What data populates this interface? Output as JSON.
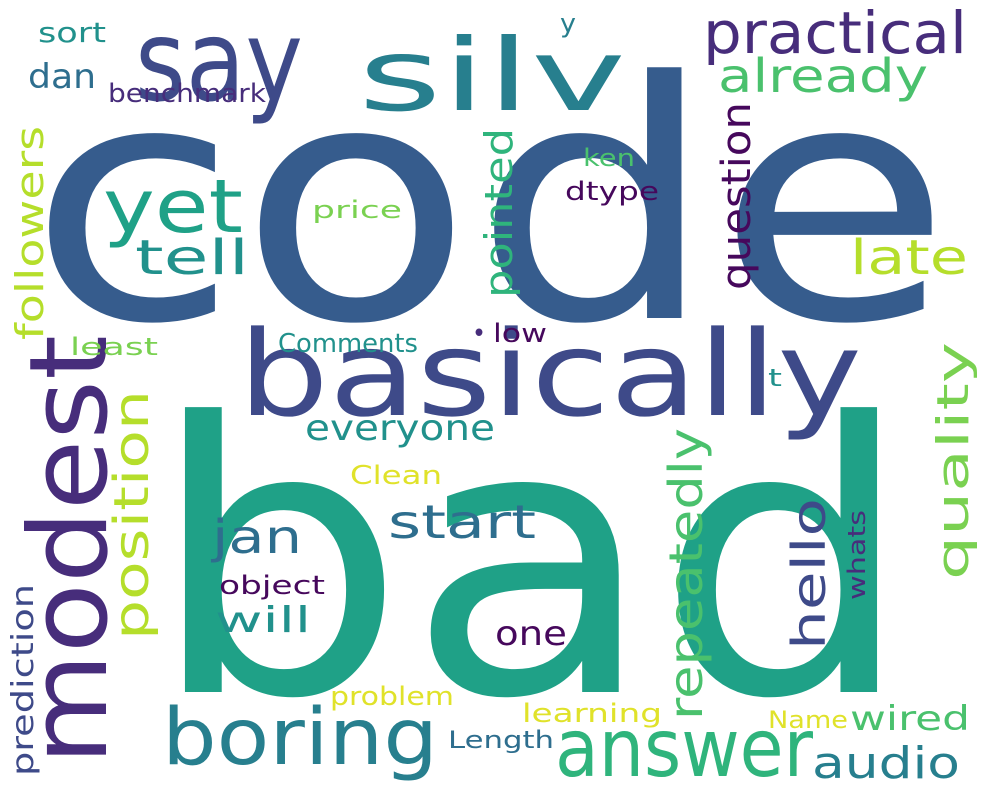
{
  "palette": {
    "deep_purple": "#46085c",
    "purple": "#472d7b",
    "indigo": "#3e4a89",
    "blue": "#365c8d",
    "steel_blue": "#2e6e8e",
    "teal_blue": "#277f8e",
    "teal": "#21918c",
    "sea_green": "#1fa187",
    "green": "#2fb47c",
    "light_green": "#4ac16d",
    "lime": "#7ad151",
    "yellow_green": "#b5de2b",
    "yellow": "#e0e22a"
  },
  "words": [
    {
      "id": "code",
      "text": "code",
      "color": "blue"
    },
    {
      "id": "bad",
      "text": "bad",
      "color": "sea_green"
    },
    {
      "id": "basically",
      "text": "basically",
      "color": "indigo"
    },
    {
      "id": "modest",
      "text": "modest",
      "color": "purple"
    },
    {
      "id": "say",
      "text": "say",
      "color": "indigo"
    },
    {
      "id": "silv",
      "text": "silv",
      "color": "teal_blue"
    },
    {
      "id": "boring",
      "text": "boring",
      "color": "teal_blue"
    },
    {
      "id": "answer",
      "text": "answer",
      "color": "green"
    },
    {
      "id": "yet",
      "text": "yet",
      "color": "sea_green"
    },
    {
      "id": "practical",
      "text": "practical",
      "color": "purple"
    },
    {
      "id": "already",
      "text": "already",
      "color": "light_green"
    },
    {
      "id": "tell",
      "text": "tell",
      "color": "teal"
    },
    {
      "id": "late",
      "text": "late",
      "color": "yellow_green"
    },
    {
      "id": "position",
      "text": "position",
      "color": "yellow_green"
    },
    {
      "id": "start",
      "text": "start",
      "color": "steel_blue"
    },
    {
      "id": "jan",
      "text": "jan",
      "color": "steel_blue"
    },
    {
      "id": "hello",
      "text": "hello",
      "color": "indigo"
    },
    {
      "id": "repeatedly",
      "text": "repeatedly",
      "color": "light_green"
    },
    {
      "id": "quality",
      "text": "quality",
      "color": "lime"
    },
    {
      "id": "audio",
      "text": "audio",
      "color": "teal_blue"
    },
    {
      "id": "question",
      "text": "question",
      "color": "deep_purple"
    },
    {
      "id": "pointed",
      "text": "pointed",
      "color": "green"
    },
    {
      "id": "followers",
      "text": "followers",
      "color": "yellow_green"
    },
    {
      "id": "everyone",
      "text": "everyone",
      "color": "teal"
    },
    {
      "id": "dan",
      "text": "dan",
      "color": "steel_blue"
    },
    {
      "id": "one",
      "text": "one",
      "color": "deep_purple"
    },
    {
      "id": "will",
      "text": "will",
      "color": "teal"
    },
    {
      "id": "wired",
      "text": "wired",
      "color": "light_green"
    },
    {
      "id": "prediction",
      "text": "prediction",
      "color": "indigo"
    },
    {
      "id": "benchmark",
      "text": "benchmark",
      "color": "purple"
    },
    {
      "id": "sort",
      "text": "sort",
      "color": "teal"
    },
    {
      "id": "y",
      "text": "y",
      "color": "teal_blue"
    },
    {
      "id": "ken",
      "text": "ken",
      "color": "light_green"
    },
    {
      "id": "dtype",
      "text": "dtype",
      "color": "deep_purple"
    },
    {
      "id": "price",
      "text": "price",
      "color": "lime"
    },
    {
      "id": "comments",
      "text": "Comments",
      "color": "teal"
    },
    {
      "id": "least",
      "text": "least",
      "color": "lime"
    },
    {
      "id": "low",
      "text": "low",
      "color": "deep_purple"
    },
    {
      "id": "dot",
      "text": "•",
      "color": "purple"
    },
    {
      "id": "t",
      "text": "t",
      "color": "teal"
    },
    {
      "id": "clean",
      "text": "Clean",
      "color": "yellow"
    },
    {
      "id": "object",
      "text": "object",
      "color": "deep_purple"
    },
    {
      "id": "whats",
      "text": "whats",
      "color": "purple"
    },
    {
      "id": "problem",
      "text": "problem",
      "color": "yellow"
    },
    {
      "id": "learning",
      "text": "learning",
      "color": "yellow"
    },
    {
      "id": "name",
      "text": "Name",
      "color": "yellow"
    },
    {
      "id": "length",
      "text": "Length",
      "color": "steel_blue"
    }
  ]
}
